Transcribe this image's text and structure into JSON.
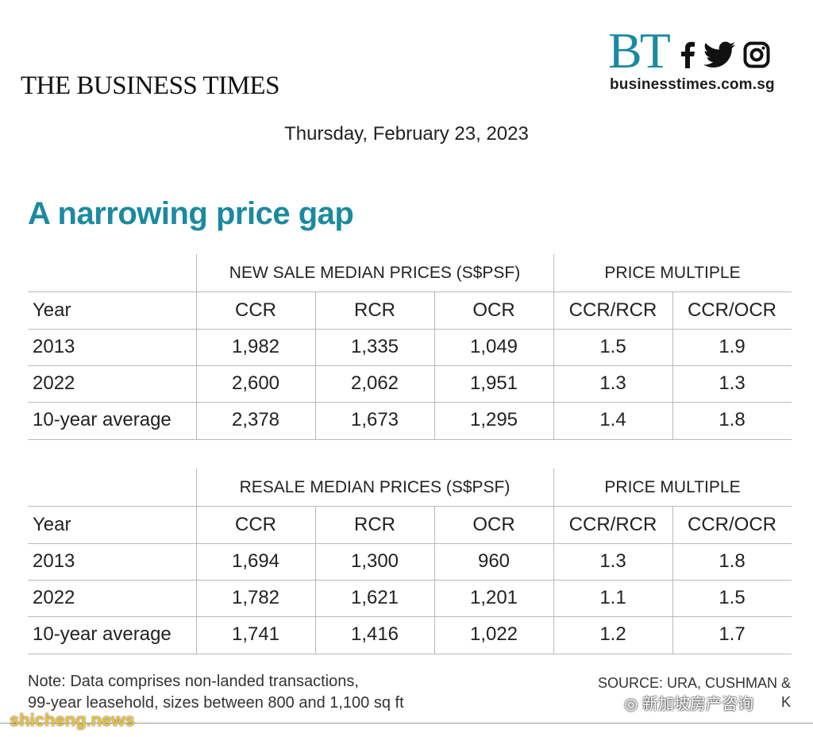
{
  "masthead": "THE BUSINESS TIMES",
  "brand": {
    "logo": "BT",
    "site": "businesstimes.com.sg",
    "icons": [
      "facebook-icon",
      "twitter-icon",
      "instagram-icon"
    ],
    "accent": "#1b8aa0"
  },
  "date": "Thursday, February 23, 2023",
  "headline": "A narrowing price gap",
  "tables": [
    {
      "group_left": "NEW SALE MEDIAN PRICES (S$PSF)",
      "group_right": "PRICE MULTIPLE",
      "columns": [
        "Year",
        "CCR",
        "RCR",
        "OCR",
        "CCR/RCR",
        "CCR/OCR"
      ],
      "rows": [
        [
          "2013",
          "1,982",
          "1,335",
          "1,049",
          "1.5",
          "1.9"
        ],
        [
          "2022",
          "2,600",
          "2,062",
          "1,951",
          "1.3",
          "1.3"
        ],
        [
          "10-year average",
          "2,378",
          "1,673",
          "1,295",
          "1.4",
          "1.8"
        ]
      ]
    },
    {
      "group_left": "RESALE MEDIAN PRICES (S$PSF)",
      "group_right": "PRICE MULTIPLE",
      "columns": [
        "Year",
        "CCR",
        "RCR",
        "OCR",
        "CCR/RCR",
        "CCR/OCR"
      ],
      "rows": [
        [
          "2013",
          "1,694",
          "1,300",
          "960",
          "1.3",
          "1.8"
        ],
        [
          "2022",
          "1,782",
          "1,621",
          "1,201",
          "1.1",
          "1.5"
        ],
        [
          "10-year average",
          "1,741",
          "1,416",
          "1,022",
          "1.2",
          "1.7"
        ]
      ]
    }
  ],
  "note": {
    "line1": "Note: Data comprises non-landed transactions,",
    "line2": "99-year leasehold, sizes between 800 and 1,100 sq ft"
  },
  "source": {
    "line1": "SOURCE: URA, CUSHMAN &",
    "line2": "K"
  },
  "watermarks": {
    "left": "shicheng.news",
    "right": "新加坡房产咨询"
  }
}
